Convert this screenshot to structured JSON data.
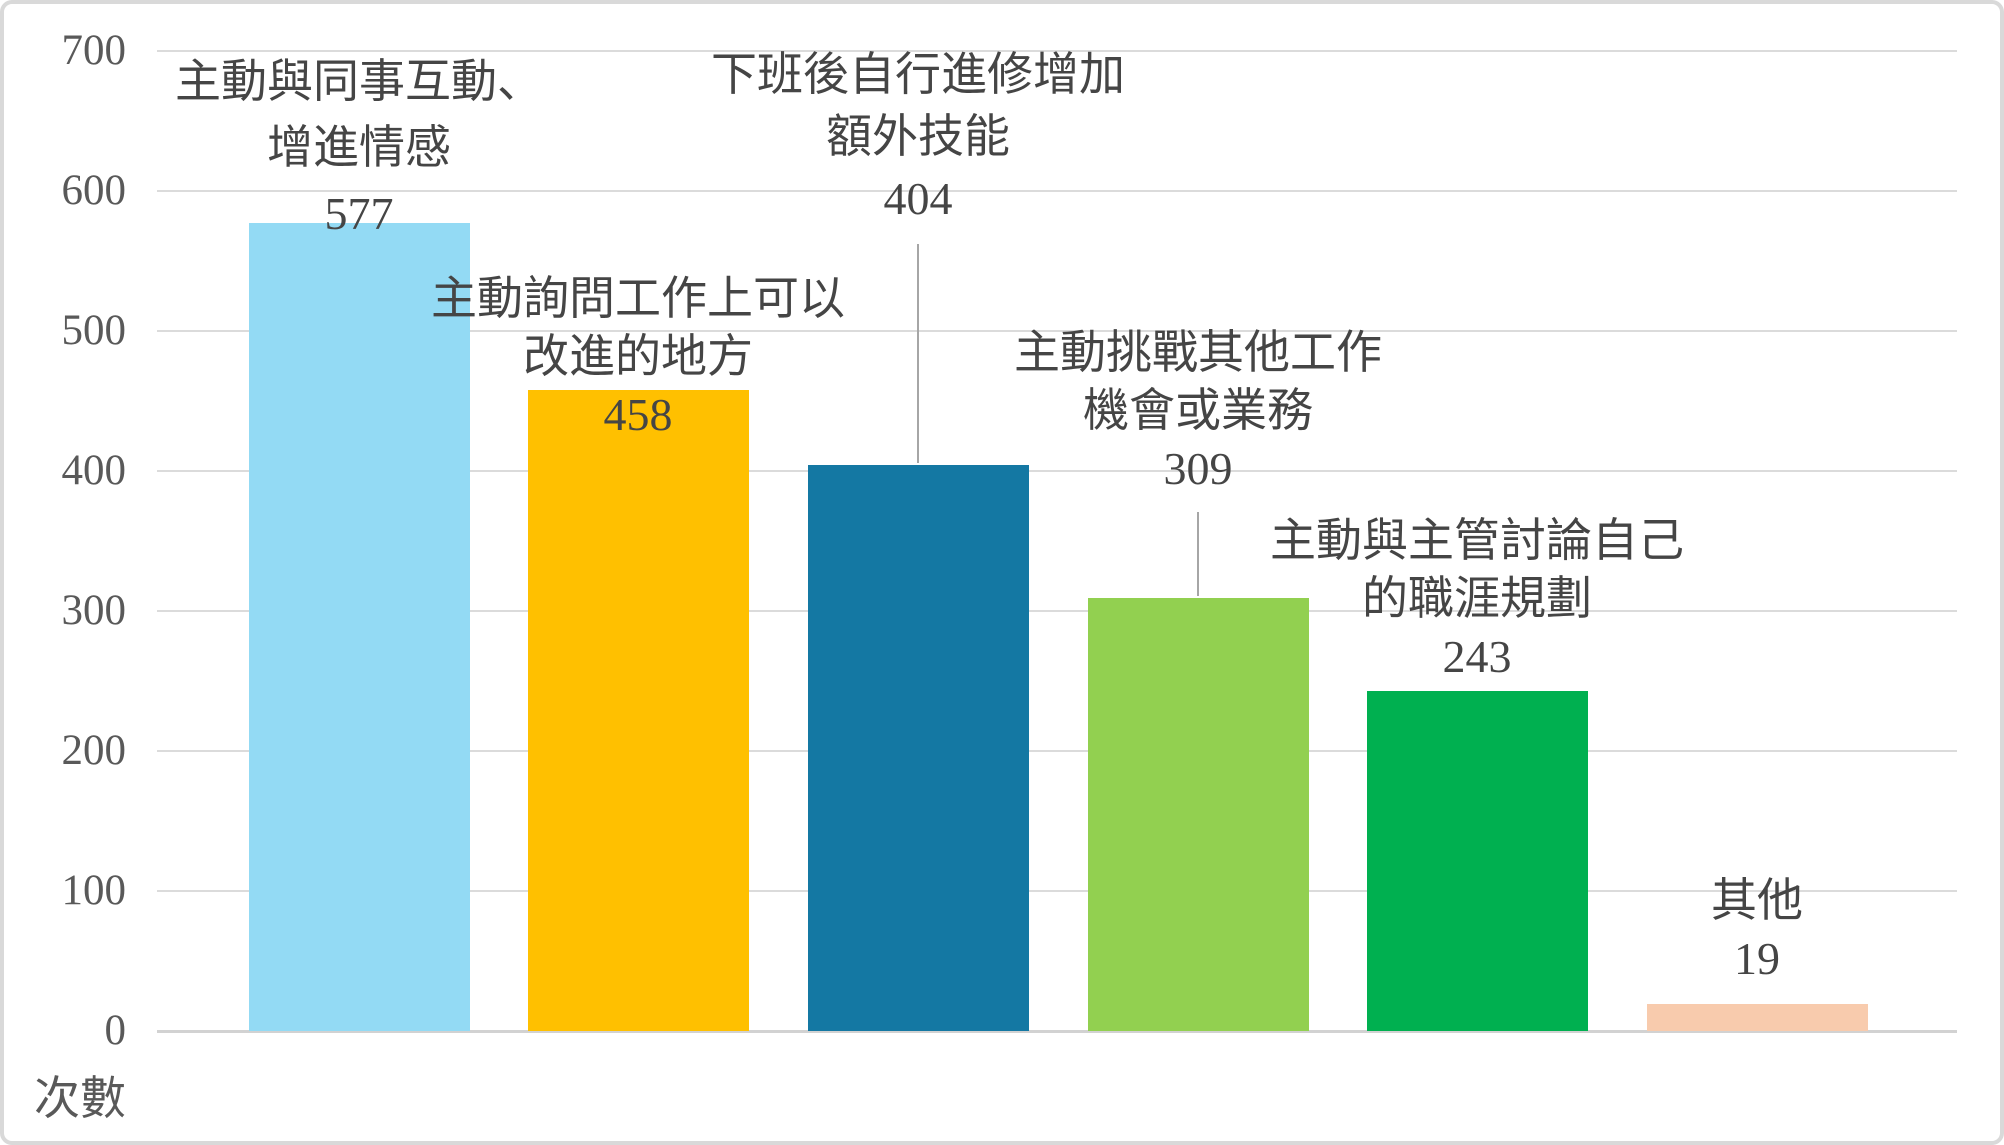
{
  "chart_data": {
    "type": "bar",
    "title": "",
    "xlabel": "",
    "ylabel": "次數",
    "ylim": [
      0,
      700
    ],
    "yticks": [
      0,
      100,
      200,
      300,
      400,
      500,
      600,
      700
    ],
    "grid": true,
    "legend": "none",
    "categories": [
      "主動與同事互動、增進情感",
      "主動詢問工作上可以改進的地方",
      "下班後自行進修增加額外技能",
      "主動挑戰其他工作機會或業務",
      "主動與主管討論自己的職涯規劃",
      "其他"
    ],
    "values": [
      577,
      458,
      404,
      309,
      243,
      19
    ],
    "bar_colors": [
      "#93DAF4",
      "#FFC000",
      "#1478A3",
      "#92D050",
      "#00B050",
      "#F8CBAD"
    ],
    "labels": [
      {
        "lines": [
          "主動與同事互動、",
          "增進情感"
        ],
        "value": "577",
        "leader": false
      },
      {
        "lines": [
          "主動詢問工作上可以",
          "改進的地方"
        ],
        "value": "458",
        "leader": false
      },
      {
        "lines": [
          "下班後自行進修增加",
          "額外技能"
        ],
        "value": "404",
        "leader": true
      },
      {
        "lines": [
          "主動挑戰其他工作",
          "機會或業務"
        ],
        "value": "309",
        "leader": true
      },
      {
        "lines": [
          "主動與主管討論自己",
          "的職涯規劃"
        ],
        "value": "243",
        "leader": false
      },
      {
        "lines": [
          "其他"
        ],
        "value": "19",
        "leader": false
      }
    ],
    "colors": {
      "gridline": "#DBDBDB",
      "axis_baseline": "#D2D2D2",
      "tick_text": "#595959",
      "label_text": "#454545",
      "leader_line": "#A6A6A6",
      "background": "#FFFFFF",
      "frame_border": "#D9D9D9"
    }
  }
}
